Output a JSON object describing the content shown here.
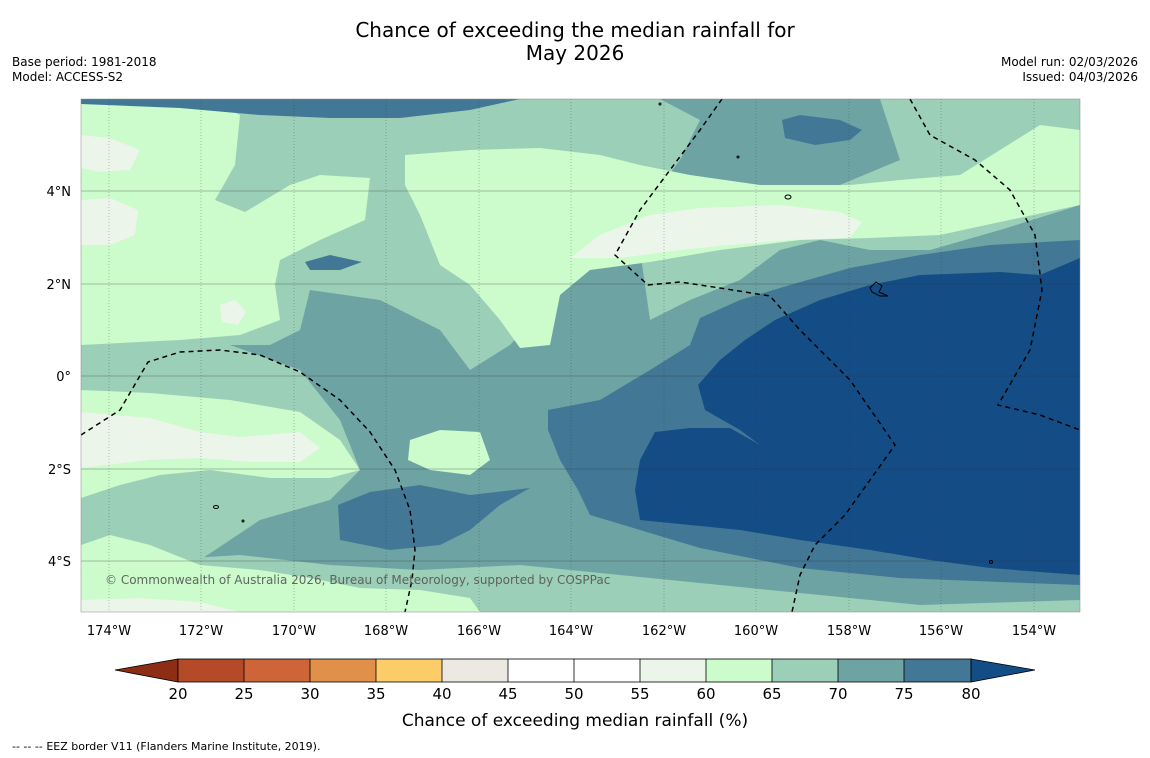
{
  "title": {
    "line1": "Chance of exceeding the median rainfall for",
    "line2": "May 2026"
  },
  "meta": {
    "base_period": "Base period: 1981-2018",
    "model": "Model: ACCESS-S2",
    "model_run": "Model run: 02/03/2026",
    "issued": "Issued: 04/03/2026"
  },
  "map": {
    "lat_labels": [
      "4°N",
      "2°N",
      "0°",
      "2°S",
      "4°S"
    ],
    "lon_labels": [
      "174°W",
      "172°W",
      "170°W",
      "168°W",
      "166°W",
      "164°W",
      "162°W",
      "160°W",
      "158°W",
      "156°W",
      "154°W"
    ],
    "copyright": "© Commonwealth of Australia 2026, Bureau of Meteorology, supported by COSPPac"
  },
  "colorbar": {
    "label": "Chance of exceeding median rainfall (%)",
    "ticks": [
      "20",
      "25",
      "30",
      "35",
      "40",
      "45",
      "50",
      "55",
      "60",
      "65",
      "70",
      "75",
      "80"
    ],
    "colors": {
      "below_20": "#8c2d14",
      "20_25": "#b44a28",
      "25_30": "#cd6538",
      "30_35": "#e09048",
      "35_40": "#fccc68",
      "40_45": "#ece9e2",
      "45_50": "#ffffff",
      "50_55": "#ffffff",
      "55_60": "#ebf5ea",
      "60_65": "#ccfbcc",
      "65_70": "#9ccfb7",
      "70_75": "#6ea3a4",
      "75_80": "#427896",
      "above_80": "#144d86"
    }
  },
  "footer": {
    "legend_dash": "-- -- --",
    "eez_text": "EEZ border V11 (Flanders Marine Institute, 2019)."
  }
}
